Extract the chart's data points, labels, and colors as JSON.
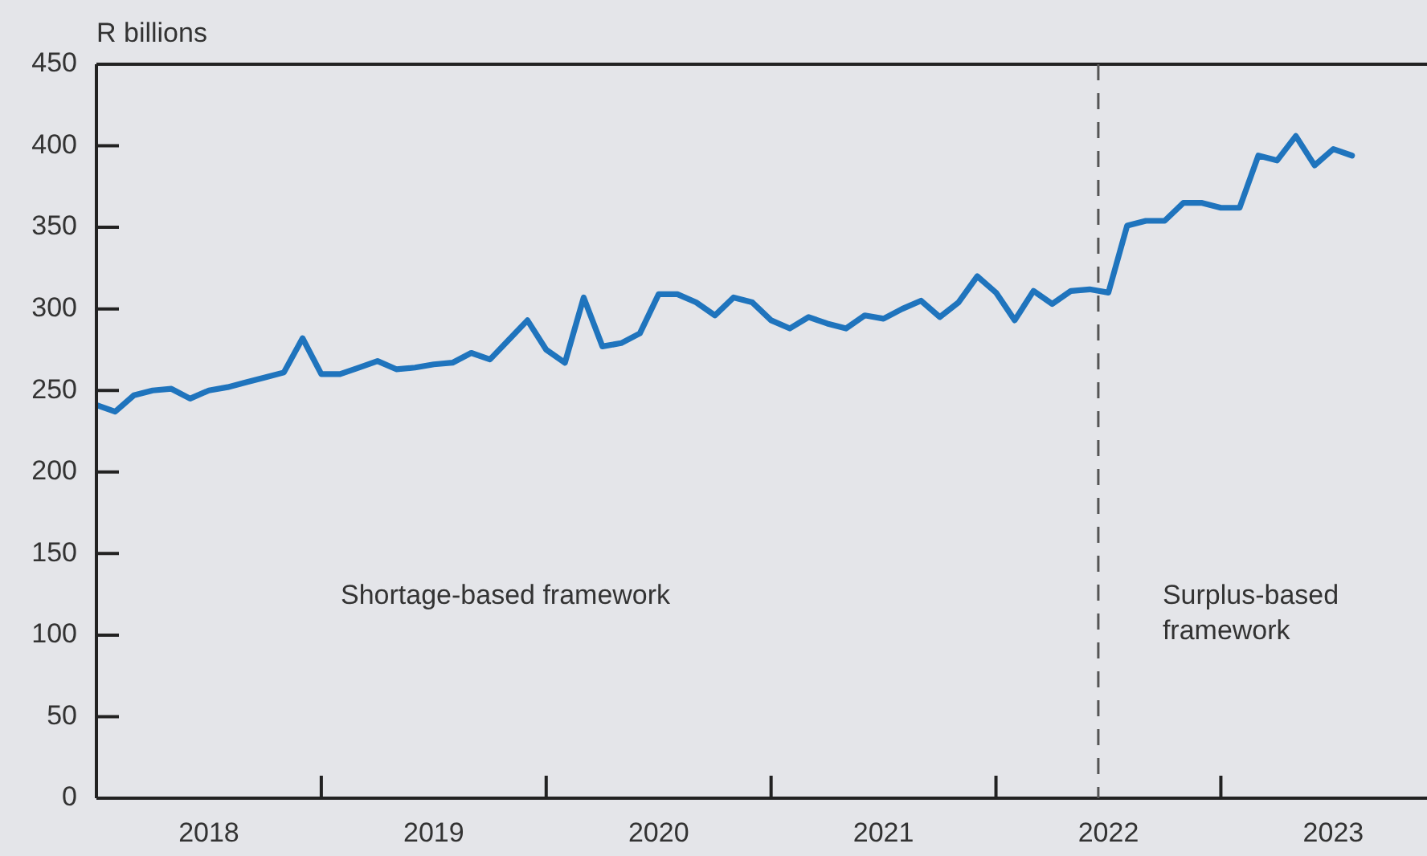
{
  "chart_data": {
    "type": "line",
    "ylabel": "R billions",
    "x": [
      "2018-01",
      "2018-02",
      "2018-03",
      "2018-04",
      "2018-05",
      "2018-06",
      "2018-07",
      "2018-08",
      "2018-09",
      "2018-10",
      "2018-11",
      "2018-12",
      "2019-01",
      "2019-02",
      "2019-03",
      "2019-04",
      "2019-05",
      "2019-06",
      "2019-07",
      "2019-08",
      "2019-09",
      "2019-10",
      "2019-11",
      "2019-12",
      "2020-01",
      "2020-02",
      "2020-03",
      "2020-04",
      "2020-05",
      "2020-06",
      "2020-07",
      "2020-08",
      "2020-09",
      "2020-10",
      "2020-11",
      "2020-12",
      "2021-01",
      "2021-02",
      "2021-03",
      "2021-04",
      "2021-05",
      "2021-06",
      "2021-07",
      "2021-08",
      "2021-09",
      "2021-10",
      "2021-11",
      "2021-12",
      "2022-01",
      "2022-02",
      "2022-03",
      "2022-04",
      "2022-05",
      "2022-06",
      "2022-07",
      "2022-08",
      "2022-09",
      "2022-10",
      "2022-11",
      "2022-12",
      "2023-01",
      "2023-02",
      "2023-03",
      "2023-04",
      "2023-05",
      "2023-06",
      "2023-07",
      "2023-08"
    ],
    "series": [
      {
        "color": "#1f74bd",
        "values": [
          241,
          237,
          247,
          250,
          251,
          245,
          250,
          252,
          255,
          258,
          261,
          282,
          260,
          260,
          264,
          268,
          263,
          264,
          266,
          267,
          273,
          269,
          281,
          293,
          275,
          267,
          307,
          277,
          279,
          285,
          309,
          309,
          304,
          296,
          307,
          304,
          293,
          288,
          295,
          291,
          288,
          296,
          294,
          300,
          305,
          295,
          304,
          320,
          310,
          293,
          311,
          303,
          311,
          312,
          310,
          351,
          354,
          354,
          365,
          365,
          362,
          362,
          394,
          391,
          406,
          388,
          398,
          394
        ]
      }
    ],
    "xlim": [
      "2018-01",
      "2023-12"
    ],
    "xticks": [
      {
        "value": "2018-07",
        "label": "2018"
      },
      {
        "value": "2019-01",
        "label": null
      },
      {
        "value": "2019-07",
        "label": "2019"
      },
      {
        "value": "2020-01",
        "label": null
      },
      {
        "value": "2020-07",
        "label": "2020"
      },
      {
        "value": "2021-01",
        "label": null
      },
      {
        "value": "2021-07",
        "label": "2021"
      },
      {
        "value": "2022-01",
        "label": null
      },
      {
        "value": "2022-07",
        "label": "2022"
      },
      {
        "value": "2023-01",
        "label": null
      },
      {
        "value": "2023-07",
        "label": "2023"
      }
    ],
    "ylim": [
      0,
      450
    ],
    "yticks": [
      0,
      50,
      100,
      150,
      200,
      250,
      300,
      350,
      400,
      450
    ],
    "grid": false,
    "legend": false,
    "marker": "none",
    "line_style": "solid",
    "ref_lines": [
      {
        "axis": "x",
        "value": "2022-06-15",
        "label": null,
        "color": "#555555",
        "line_style": "dashed"
      }
    ],
    "annotations": [
      "Shortage-based framework",
      "Surplus-based framework"
    ]
  }
}
